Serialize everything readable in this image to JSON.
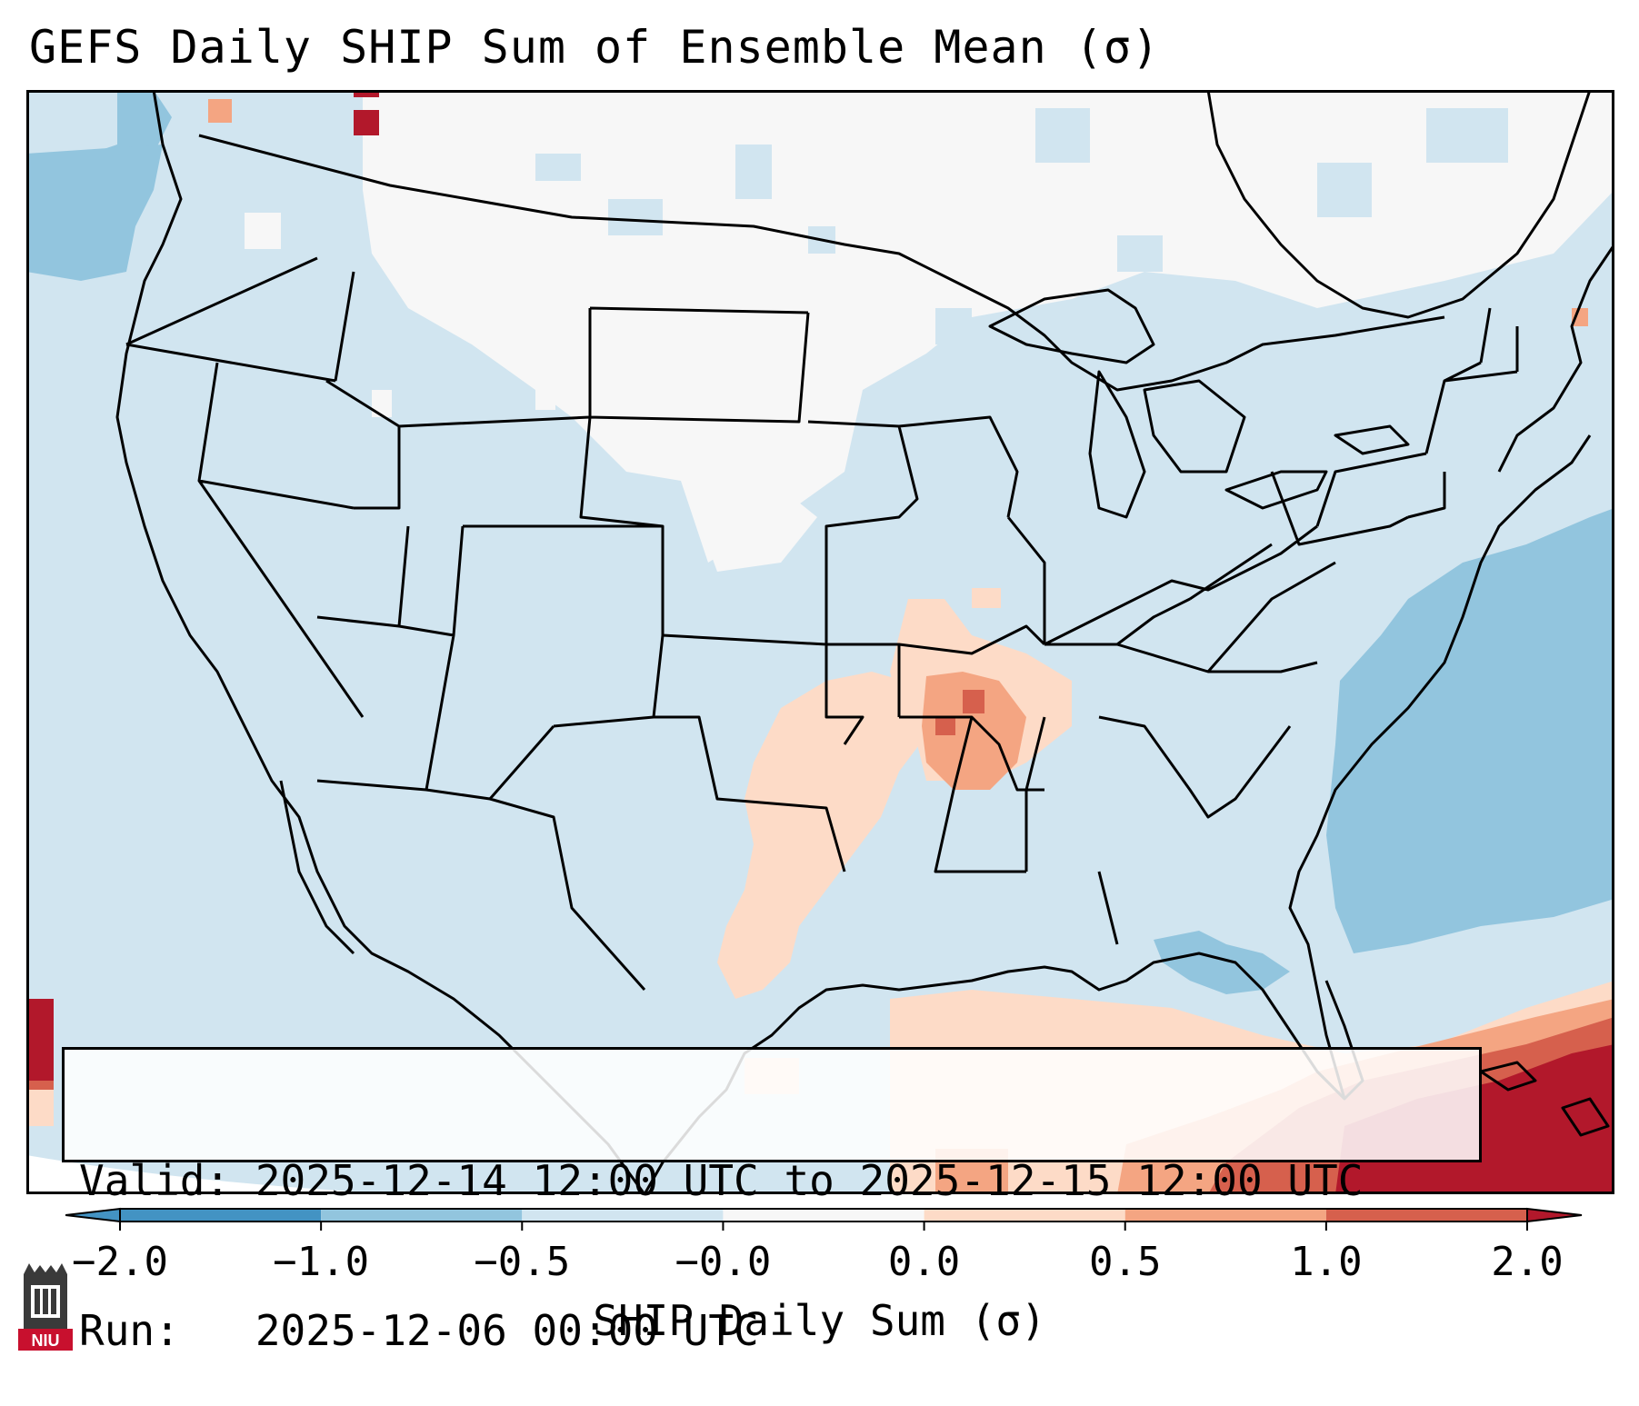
{
  "title": "GEFS Daily SHIP Sum of Ensemble Mean (σ)",
  "info_box": {
    "valid_line": "Valid: 2025-12-14 12:00 UTC to 2025-12-15 12:00 UTC",
    "run_line": "Run:   2025-12-06 00:00 UTC"
  },
  "colorbar": {
    "label": "SHIP Daily Sum (σ)",
    "ticks": [
      "−2.0",
      "−1.0",
      "−0.5",
      "−0.0",
      "0.0",
      "0.5",
      "1.0",
      "2.0"
    ],
    "colors": [
      "#4393c3",
      "#92c5de",
      "#d1e5f0",
      "#f7f7f7",
      "#fddbc7",
      "#f4a582",
      "#d6604d",
      "#b2182b"
    ],
    "extend": "both"
  },
  "logo": {
    "text": "NIU",
    "name": "niu-logo"
  }
}
